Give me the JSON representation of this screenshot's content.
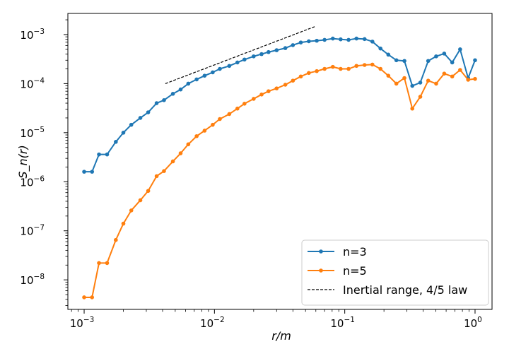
{
  "chart_data": {
    "type": "line",
    "xscale": "log",
    "yscale": "log",
    "xlim": [
      0.00075,
      1.35
    ],
    "ylim": [
      2.5e-09,
      0.0027
    ],
    "xlabel": "r/m",
    "ylabel": "S_n(r)",
    "x_ticks": [
      {
        "value": 0.001,
        "base": "10",
        "exp": "−3"
      },
      {
        "value": 0.01,
        "base": "10",
        "exp": "−2"
      },
      {
        "value": 0.1,
        "base": "10",
        "exp": "−1"
      },
      {
        "value": 1,
        "base": "10",
        "exp": "0"
      }
    ],
    "y_ticks": [
      {
        "value": 1e-08,
        "base": "10",
        "exp": "−8"
      },
      {
        "value": 1e-07,
        "base": "10",
        "exp": "−7"
      },
      {
        "value": 1e-06,
        "base": "10",
        "exp": "−6"
      },
      {
        "value": 1e-05,
        "base": "10",
        "exp": "−5"
      },
      {
        "value": 0.0001,
        "base": "10",
        "exp": "−4"
      },
      {
        "value": 0.001,
        "base": "10",
        "exp": "−3"
      }
    ],
    "x": [
      0.001,
      0.00115,
      0.0013,
      0.0015,
      0.00175,
      0.002,
      0.0023,
      0.0027,
      0.0031,
      0.0036,
      0.0041,
      0.0048,
      0.0055,
      0.0063,
      0.0073,
      0.0084,
      0.0097,
      0.011,
      0.013,
      0.015,
      0.017,
      0.02,
      0.023,
      0.026,
      0.03,
      0.035,
      0.04,
      0.046,
      0.053,
      0.061,
      0.07,
      0.081,
      0.093,
      0.107,
      0.123,
      0.142,
      0.163,
      0.188,
      0.216,
      0.249,
      0.287,
      0.33,
      0.38,
      0.437,
      0.503,
      0.58,
      0.668,
      0.768,
      0.885,
      1.0
    ],
    "series": [
      {
        "name": "n=3",
        "color": "#1f77b4",
        "values": [
          1.6e-06,
          1.6e-06,
          3.6e-06,
          3.6e-06,
          6.5e-06,
          1e-05,
          1.45e-05,
          2e-05,
          2.6e-05,
          4e-05,
          4.6e-05,
          6.2e-05,
          7.6e-05,
          0.0001,
          0.000122,
          0.000145,
          0.00017,
          0.0002,
          0.00023,
          0.00027,
          0.00031,
          0.00036,
          0.0004,
          0.00044,
          0.00048,
          0.00053,
          0.00061,
          0.00069,
          0.00073,
          0.00075,
          0.00078,
          0.00083,
          0.0008,
          0.00078,
          0.00083,
          0.00081,
          0.00072,
          0.00052,
          0.00039,
          0.0003,
          0.00029,
          9e-05,
          0.000105,
          0.00029,
          0.00036,
          0.00041,
          0.00027,
          0.0005,
          0.00013,
          0.0003
        ]
      },
      {
        "name": "n=5",
        "color": "#ff7f0e",
        "values": [
          4.4e-09,
          4.4e-09,
          2.2e-08,
          2.2e-08,
          6.5e-08,
          1.4e-07,
          2.6e-07,
          4.2e-07,
          6.5e-07,
          1.3e-06,
          1.65e-06,
          2.6e-06,
          3.8e-06,
          5.8e-06,
          8.5e-06,
          1.1e-05,
          1.45e-05,
          1.9e-05,
          2.4e-05,
          3.1e-05,
          3.9e-05,
          4.9e-05,
          6e-05,
          7e-05,
          8e-05,
          9.5e-05,
          0.000115,
          0.00014,
          0.000165,
          0.00018,
          0.0002,
          0.00022,
          0.0002,
          0.0002,
          0.00023,
          0.00024,
          0.000245,
          0.0002,
          0.000145,
          0.0001,
          0.00013,
          3.1e-05,
          5.4e-05,
          0.000115,
          0.0001,
          0.00016,
          0.00014,
          0.00019,
          0.00012,
          0.000125
        ]
      }
    ],
    "reference_line": {
      "name": "Inertial range, 4/5 law",
      "style": "dashed",
      "color": "#000000",
      "x": [
        0.0042,
        0.06
      ],
      "y": [
        0.0001,
        0.00148
      ]
    },
    "legend": {
      "placement": "bottom-right",
      "entries": [
        "n=3",
        "n=5",
        "Inertial range, 4/5 law"
      ]
    },
    "grid": false
  }
}
